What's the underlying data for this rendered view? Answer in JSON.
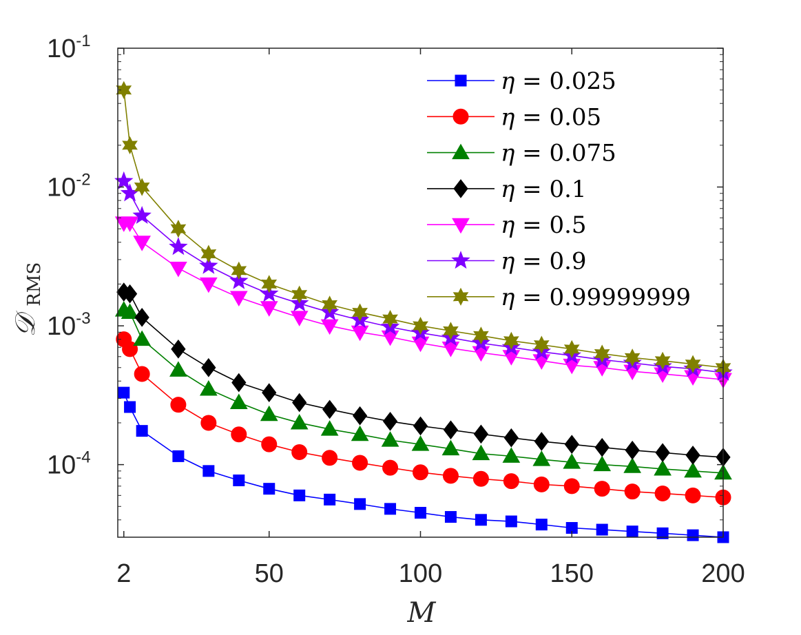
{
  "chart_data": {
    "type": "line",
    "title": "",
    "xlabel": "M",
    "ylabel": {
      "base": "𝒟",
      "subscript": "RMS"
    },
    "xscale": "linear",
    "yscale": "log",
    "xlim": [
      0,
      200
    ],
    "ylim": [
      3e-05,
      0.1
    ],
    "grid": false,
    "legend_position": "top-right",
    "xticks": [
      {
        "value": 2,
        "label": "2"
      },
      {
        "value": 50,
        "label": "50"
      },
      {
        "value": 100,
        "label": "100"
      },
      {
        "value": 150,
        "label": "150"
      },
      {
        "value": 200,
        "label": "200"
      }
    ],
    "yticks": [
      {
        "value": 0.0001,
        "base": "10",
        "exp": "-4"
      },
      {
        "value": 0.001,
        "base": "10",
        "exp": "-3"
      },
      {
        "value": 0.01,
        "base": "10",
        "exp": "-2"
      },
      {
        "value": 0.1,
        "base": "10",
        "exp": "-1"
      }
    ],
    "x": [
      2,
      4,
      8,
      20,
      30,
      40,
      50,
      60,
      70,
      80,
      90,
      100,
      110,
      120,
      130,
      140,
      150,
      160,
      170,
      180,
      190,
      200
    ],
    "series": [
      {
        "name": "η = 0.025",
        "eta": "0.025",
        "color": "#0000ff",
        "marker": "square",
        "values": [
          0.00033,
          0.00026,
          0.000175,
          0.000115,
          9e-05,
          7.7e-05,
          6.7e-05,
          6e-05,
          5.6e-05,
          5.2e-05,
          4.8e-05,
          4.5e-05,
          4.2e-05,
          4e-05,
          3.9e-05,
          3.7e-05,
          3.5e-05,
          3.4e-05,
          3.3e-05,
          3.2e-05,
          3.1e-05,
          3e-05
        ]
      },
      {
        "name": "η = 0.05",
        "eta": "0.05",
        "color": "#ff0000",
        "marker": "circle",
        "values": [
          0.0008,
          0.00068,
          0.00045,
          0.00027,
          0.0002,
          0.000165,
          0.00014,
          0.000123,
          0.000112,
          0.000103,
          9.5e-05,
          8.8e-05,
          8.3e-05,
          7.9e-05,
          7.6e-05,
          7.2e-05,
          7e-05,
          6.7e-05,
          6.4e-05,
          6.2e-05,
          6e-05,
          5.8e-05
        ]
      },
      {
        "name": "η = 0.075",
        "eta": "0.075",
        "color": "#008000",
        "marker": "triangle-up",
        "values": [
          0.0013,
          0.00125,
          0.0008,
          0.00048,
          0.00035,
          0.00028,
          0.00023,
          0.0002,
          0.00018,
          0.000165,
          0.00015,
          0.00014,
          0.00013,
          0.00012,
          0.000115,
          0.000109,
          0.000104,
          0.0001,
          9.7e-05,
          9.3e-05,
          9e-05,
          8.7e-05
        ]
      },
      {
        "name": "η = 0.1",
        "eta": "0.1",
        "color": "#000000",
        "marker": "diamond",
        "values": [
          0.00175,
          0.0017,
          0.00115,
          0.00068,
          0.0005,
          0.00039,
          0.00033,
          0.00028,
          0.00025,
          0.000225,
          0.000205,
          0.00019,
          0.000178,
          0.000166,
          0.000156,
          0.000147,
          0.00014,
          0.000133,
          0.000127,
          0.000122,
          0.000117,
          0.000113
        ]
      },
      {
        "name": "η = 0.5",
        "eta": "0.5",
        "color": "#ff00ff",
        "marker": "triangle-down",
        "values": [
          0.0055,
          0.0055,
          0.004,
          0.0026,
          0.002,
          0.0016,
          0.00135,
          0.00115,
          0.001,
          0.0009,
          0.00083,
          0.00075,
          0.00069,
          0.00064,
          0.0006,
          0.00056,
          0.00052,
          0.0005,
          0.00047,
          0.00045,
          0.00043,
          0.00041
        ]
      },
      {
        "name": "η = 0.9",
        "eta": "0.9",
        "color": "#7f00ff",
        "marker": "pentagram",
        "values": [
          0.011,
          0.009,
          0.0062,
          0.0037,
          0.0027,
          0.0021,
          0.0017,
          0.00145,
          0.00125,
          0.0011,
          0.00098,
          0.00089,
          0.00082,
          0.00075,
          0.0007,
          0.00065,
          0.00061,
          0.00057,
          0.00054,
          0.00051,
          0.00049,
          0.00046
        ]
      },
      {
        "name": "η = 0.99999999",
        "eta": "0.99999999",
        "color": "#808000",
        "marker": "hexagram",
        "values": [
          0.05,
          0.02,
          0.01,
          0.005,
          0.0033,
          0.0025,
          0.002,
          0.00168,
          0.00142,
          0.00125,
          0.00112,
          0.001,
          0.00092,
          0.00085,
          0.00078,
          0.00073,
          0.00068,
          0.00063,
          0.00059,
          0.00056,
          0.00053,
          0.0005
        ]
      }
    ]
  }
}
